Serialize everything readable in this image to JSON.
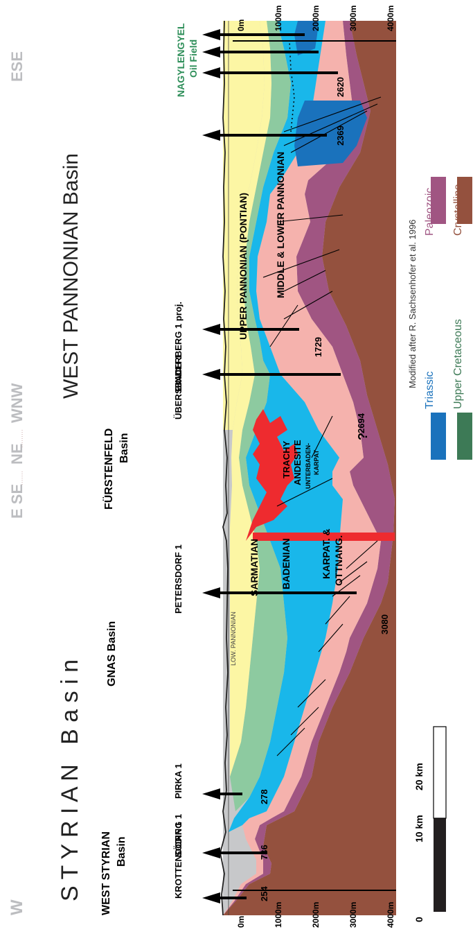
{
  "orientation_left": {
    "w": "W",
    "e_se": "E SE",
    "ne": "NE",
    "wnw": "WNW",
    "ese": "ESE"
  },
  "titles": {
    "styrian": "S T Y R I A N   B a s i n",
    "west_pannonian": "WEST PANNONIAN Basin"
  },
  "basins": {
    "west_styrian_1": "WEST STYRIAN",
    "west_styrian_2": "Basin",
    "gnas": "GNAS Basin",
    "furstenfeld_1": "FÜRSTENFELD",
    "furstenfeld_2": "Basin",
    "nagylengyel_1": "NAGYLENGYEL",
    "nagylengyel_2": "Oil Field"
  },
  "wells": {
    "krottendorf": "KROTTENDORF 1",
    "soding": "SÖDING 1",
    "pirka": "PIRKA 1",
    "petersdorf": "PETERSDORF 1",
    "ubersbach": "ÜBERSBACH 1",
    "binderberg": "BINDERBERG 1 proj."
  },
  "depths": {
    "d254": "254",
    "d736": "736",
    "d278": "278",
    "d3080": "3080",
    "d2694": "2694",
    "d1729": "1729",
    "d2369": "2369",
    "d2620": "2620"
  },
  "units": {
    "low_pannonian": "LOW. PANNONIAN",
    "sarmatian": "SARMATIAN",
    "badenian": "BADENIAN",
    "karpat_1": "KARPAT. &",
    "karpat_2": "OTTNANG.",
    "trachy": "TRACHY",
    "andesite": "ANDESITE",
    "unterbaden_1": "UNTERBADEN-",
    "unterbaden_2": "KARPAT",
    "question": "?",
    "upper_pannonian": "UPPER PANNONIAN (PONTIAN)",
    "middle_lower": "MIDDLE & LOWER PANNONIAN"
  },
  "depth_axis": [
    "0m",
    "1000m",
    "2000m",
    "3000m",
    "4000m"
  ],
  "scale_bar": {
    "zero": "0",
    "ten": "10 km",
    "twenty": "20 km"
  },
  "credit": "Modified after R. Sachsenhofer et al. 1996",
  "legend": [
    {
      "label": "Triassic",
      "color": "#1a72bc",
      "text_color": "#1a72bc"
    },
    {
      "label": "Upper Cretaceous",
      "color": "#3d7a56",
      "text_color": "#3d7a56"
    },
    {
      "label": "Paleozoic",
      "color": "#a05582",
      "text_color": "#a05582"
    },
    {
      "label": "Crystalline",
      "color": "#94513e",
      "text_color": "#94513e"
    }
  ],
  "colors": {
    "basement_grey": "#c7c8ca",
    "crystalline": "#94513e",
    "paleozoic": "#a05582",
    "karpat_pink": "#f5b2ad",
    "badenian_blue": "#19b7ea",
    "sarmatian_green": "#8dcaa0",
    "pannonian_yellow": "#fcf6a4",
    "triassic": "#1a72bc",
    "andesite_red": "#ee2b2f",
    "nagylengyel_green": "#2f8f5a",
    "orientation_grey": "#bcbdc0"
  }
}
